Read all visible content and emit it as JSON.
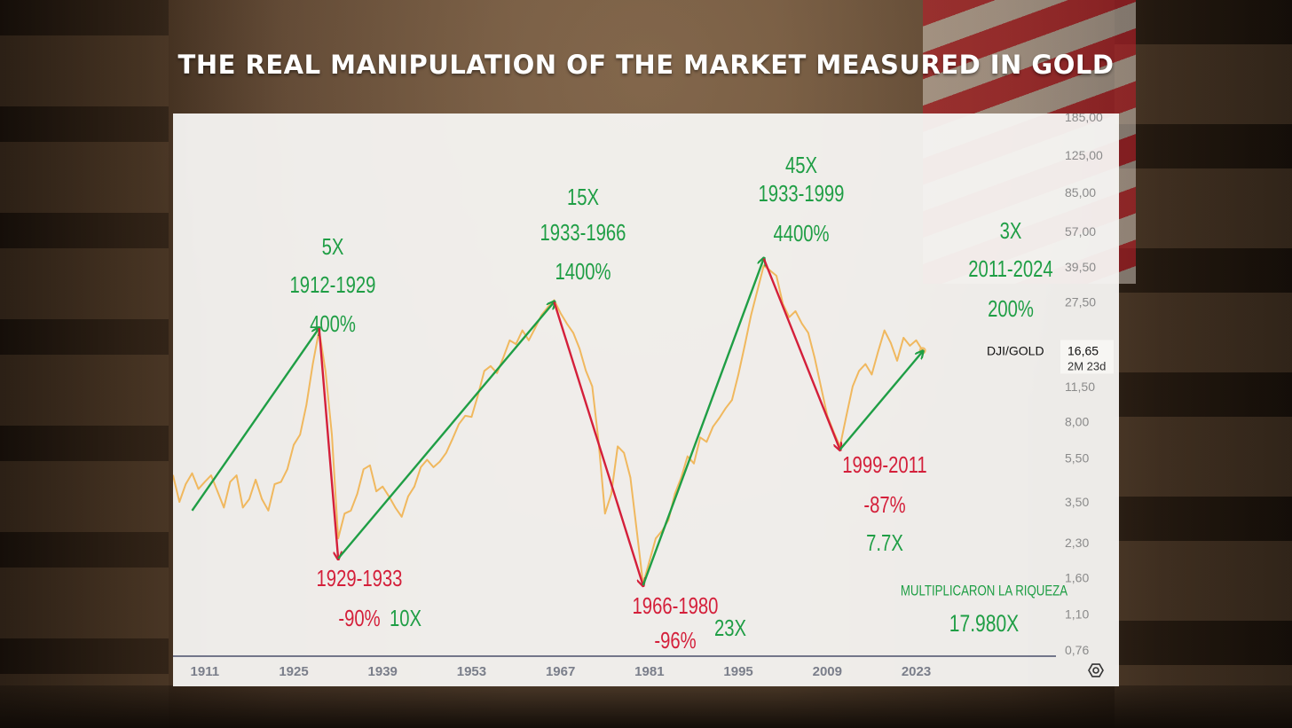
{
  "title": "THE REAL MANIPULATION OF THE  MARKET MEASURED IN GOLD",
  "chart_data": {
    "type": "line",
    "symbol_label": "DJI/GOLD",
    "last_value": "16,65",
    "countdown": "2M 23d",
    "y_scale": "log",
    "ylim": [
      0.76,
      185
    ],
    "yticks": [
      {
        "value": 185,
        "label": "185,00"
      },
      {
        "value": 125,
        "label": "125,00"
      },
      {
        "value": 85,
        "label": "85,00"
      },
      {
        "value": 57,
        "label": "57,00"
      },
      {
        "value": 39.5,
        "label": "39,50"
      },
      {
        "value": 27.5,
        "label": "27,50"
      },
      {
        "value": 11.5,
        "label": "11,50"
      },
      {
        "value": 8,
        "label": "8,00"
      },
      {
        "value": 5.5,
        "label": "5,50"
      },
      {
        "value": 3.5,
        "label": "3,50"
      },
      {
        "value": 2.3,
        "label": "2,30"
      },
      {
        "value": 1.6,
        "label": "1,60"
      },
      {
        "value": 1.1,
        "label": "1,10"
      },
      {
        "value": 0.76,
        "label": "0,76"
      }
    ],
    "xticks": [
      "1911",
      "1925",
      "1939",
      "1953",
      "1967",
      "1981",
      "1995",
      "2009",
      "2023"
    ],
    "xlim": [
      1906,
      2045
    ],
    "series": [
      {
        "color": "#f0b85e",
        "points": [
          [
            1906,
            4.6
          ],
          [
            1907,
            3.5
          ],
          [
            1908,
            4.2
          ],
          [
            1909,
            4.7
          ],
          [
            1910,
            4.0
          ],
          [
            1911,
            4.3
          ],
          [
            1912,
            4.6
          ],
          [
            1913,
            3.9
          ],
          [
            1914,
            3.3
          ],
          [
            1915,
            4.3
          ],
          [
            1916,
            4.6
          ],
          [
            1917,
            3.3
          ],
          [
            1918,
            3.6
          ],
          [
            1919,
            4.4
          ],
          [
            1920,
            3.6
          ],
          [
            1921,
            3.2
          ],
          [
            1922,
            4.2
          ],
          [
            1923,
            4.3
          ],
          [
            1924,
            4.9
          ],
          [
            1925,
            6.3
          ],
          [
            1926,
            7.0
          ],
          [
            1927,
            9.5
          ],
          [
            1928,
            14.5
          ],
          [
            1929,
            20.5
          ],
          [
            1930,
            13.5
          ],
          [
            1931,
            7.0
          ],
          [
            1932,
            2.4
          ],
          [
            1933,
            3.1
          ],
          [
            1934,
            3.2
          ],
          [
            1935,
            3.8
          ],
          [
            1936,
            4.9
          ],
          [
            1937,
            5.1
          ],
          [
            1938,
            3.9
          ],
          [
            1939,
            4.1
          ],
          [
            1940,
            3.7
          ],
          [
            1941,
            3.3
          ],
          [
            1942,
            3.0
          ],
          [
            1943,
            3.7
          ],
          [
            1944,
            4.1
          ],
          [
            1945,
            5.0
          ],
          [
            1946,
            5.4
          ],
          [
            1947,
            5.0
          ],
          [
            1948,
            5.3
          ],
          [
            1949,
            5.8
          ],
          [
            1950,
            6.7
          ],
          [
            1951,
            7.8
          ],
          [
            1952,
            8.5
          ],
          [
            1953,
            8.4
          ],
          [
            1954,
            10.5
          ],
          [
            1955,
            13.5
          ],
          [
            1956,
            14.2
          ],
          [
            1957,
            13.2
          ],
          [
            1958,
            15.5
          ],
          [
            1959,
            18.5
          ],
          [
            1960,
            17.8
          ],
          [
            1961,
            20.5
          ],
          [
            1962,
            18.5
          ],
          [
            1963,
            21.0
          ],
          [
            1964,
            24.0
          ],
          [
            1965,
            26.0
          ],
          [
            1966,
            28.0
          ],
          [
            1967,
            24.5
          ],
          [
            1968,
            22.0
          ],
          [
            1969,
            20.0
          ],
          [
            1970,
            17.0
          ],
          [
            1971,
            13.5
          ],
          [
            1972,
            11.5
          ],
          [
            1973,
            6.5
          ],
          [
            1974,
            3.1
          ],
          [
            1975,
            3.8
          ],
          [
            1976,
            6.2
          ],
          [
            1977,
            5.8
          ],
          [
            1978,
            4.5
          ],
          [
            1979,
            2.6
          ],
          [
            1980,
            1.5
          ],
          [
            1981,
            1.9
          ],
          [
            1982,
            2.4
          ],
          [
            1983,
            2.6
          ],
          [
            1984,
            2.9
          ],
          [
            1985,
            3.8
          ],
          [
            1986,
            4.5
          ],
          [
            1987,
            5.6
          ],
          [
            1988,
            5.2
          ],
          [
            1989,
            6.8
          ],
          [
            1990,
            6.5
          ],
          [
            1991,
            7.6
          ],
          [
            1992,
            8.3
          ],
          [
            1993,
            9.2
          ],
          [
            1994,
            10.0
          ],
          [
            1995,
            13.0
          ],
          [
            1996,
            17.5
          ],
          [
            1997,
            24.0
          ],
          [
            1998,
            31.0
          ],
          [
            1999,
            40.0
          ],
          [
            2000,
            38.0
          ],
          [
            2001,
            36.0
          ],
          [
            2002,
            27.0
          ],
          [
            2003,
            23.5
          ],
          [
            2004,
            25.0
          ],
          [
            2005,
            22.0
          ],
          [
            2006,
            20.0
          ],
          [
            2007,
            15.5
          ],
          [
            2008,
            11.5
          ],
          [
            2009,
            8.5
          ],
          [
            2010,
            7.2
          ],
          [
            2011,
            6.2
          ],
          [
            2012,
            8.5
          ],
          [
            2013,
            11.5
          ],
          [
            2014,
            13.5
          ],
          [
            2015,
            14.5
          ],
          [
            2016,
            13.0
          ],
          [
            2017,
            16.5
          ],
          [
            2018,
            20.5
          ],
          [
            2019,
            18.0
          ],
          [
            2020,
            15.0
          ],
          [
            2021,
            19.0
          ],
          [
            2022,
            17.5
          ],
          [
            2023,
            18.5
          ],
          [
            2024,
            16.65
          ]
        ]
      }
    ],
    "arrows": [
      {
        "from": [
          1909,
          3.2
        ],
        "to": [
          1929,
          21.0
        ],
        "color": "#1f9e45"
      },
      {
        "from": [
          1929,
          21.0
        ],
        "to": [
          1932,
          1.95
        ],
        "color": "#d41f3a"
      },
      {
        "from": [
          1932,
          1.95
        ],
        "to": [
          1966,
          27.5
        ],
        "color": "#1f9e45"
      },
      {
        "from": [
          1966,
          27.5
        ],
        "to": [
          1980,
          1.48
        ],
        "color": "#d41f3a"
      },
      {
        "from": [
          1980,
          1.48
        ],
        "to": [
          1999,
          43.0
        ],
        "color": "#1f9e45"
      },
      {
        "from": [
          1999,
          43.0
        ],
        "to": [
          2011,
          6.0
        ],
        "color": "#d41f3a"
      },
      {
        "from": [
          2011,
          6.0
        ],
        "to": [
          2024,
          16.5
        ],
        "color": "#1f9e45"
      }
    ],
    "annotations": [
      {
        "lines": [
          "5X",
          "1912-1929",
          "400%"
        ],
        "color": "#1f9e45"
      },
      {
        "lines": [
          "15X",
          "1933-1966",
          "1400%"
        ],
        "color": "#1f9e45"
      },
      {
        "lines": [
          "45X",
          "1933-1999",
          "4400%"
        ],
        "color": "#1f9e45"
      },
      {
        "lines": [
          "3X",
          "2011-2024",
          "200%"
        ],
        "color": "#1f9e45"
      },
      {
        "lines": [
          "1929-1933",
          "-90%"
        ],
        "color": "#d41f3a"
      },
      {
        "lines": [
          "10X"
        ],
        "color": "#1f9e45"
      },
      {
        "lines": [
          "1966-1980",
          "-96%"
        ],
        "color": "#d41f3a"
      },
      {
        "lines": [
          "23X"
        ],
        "color": "#1f9e45"
      },
      {
        "lines": [
          "1999-2011",
          "-87%"
        ],
        "color": "#d41f3a"
      },
      {
        "lines": [
          "7.7X"
        ],
        "color": "#1f9e45"
      },
      {
        "lines": [
          "MULTIPLICARON LA RIQUEZA"
        ],
        "color": "#1f9e45"
      },
      {
        "lines": [
          "17.980X"
        ],
        "color": "#1f9e45"
      }
    ]
  }
}
